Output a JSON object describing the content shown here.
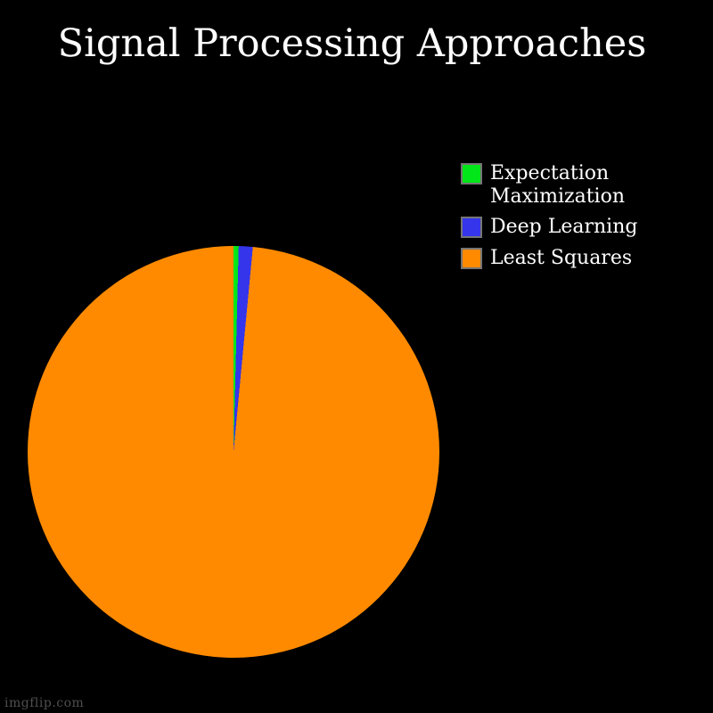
{
  "title": "Signal Processing Approaches",
  "watermark": "imgflip.com",
  "colors": {
    "background": "#000000",
    "title_text": "#ffffff",
    "legend_text": "#ffffff",
    "swatch_border": "#757575",
    "watermark_text": "#4f4f4f"
  },
  "chart_data": {
    "type": "pie",
    "title": "Signal Processing Approaches",
    "labels": [
      "Expectation Maximization",
      "Deep Learning",
      "Least Squares"
    ],
    "values": [
      0.4,
      1.1,
      98.5
    ],
    "unit": "percent",
    "colors": [
      "#00E619",
      "#3535EC",
      "#FF8A00"
    ],
    "start_angle_deg": 0,
    "direction": "clockwise",
    "legend_position": "right",
    "background": "#000000"
  }
}
